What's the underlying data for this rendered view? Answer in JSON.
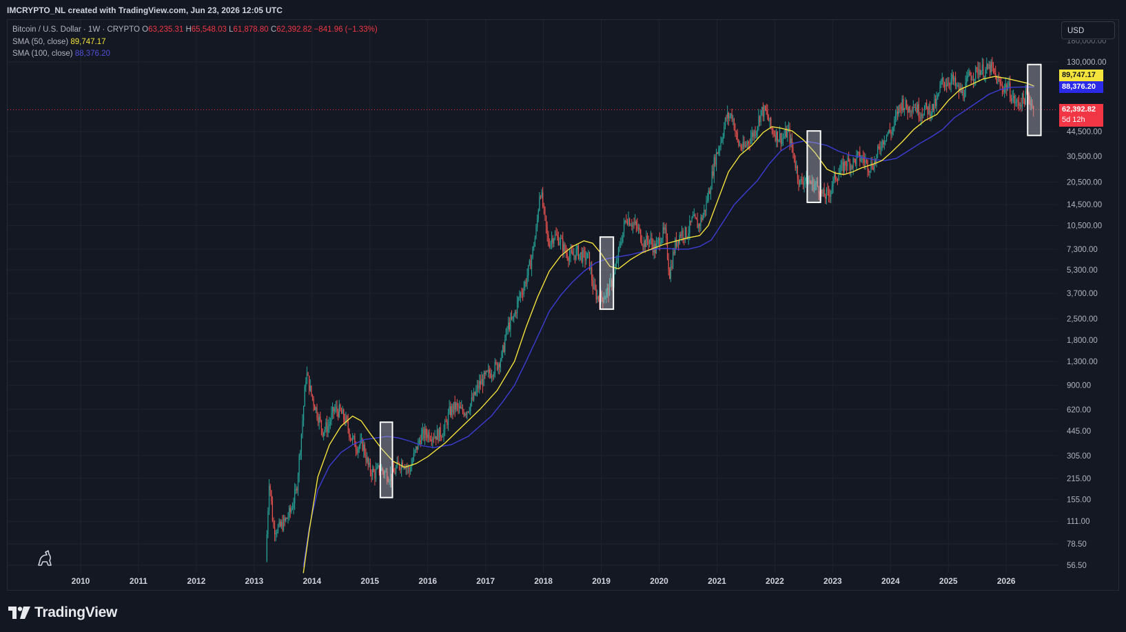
{
  "header": {
    "attribution": "IMCRYPTO_NL created with TradingView.com, Jun 23, 2026 12:05 UTC"
  },
  "legend": {
    "symbol": "Bitcoin / U.S. Dollar · 1W · CRYPTO",
    "open_label": "O",
    "open": "63,235.31",
    "high_label": "H",
    "high": "65,548.03",
    "low_label": "L",
    "low": "61,878.80",
    "close_label": "C",
    "close": "62,392.82",
    "change": "−841.96 (−1.33%)",
    "sma50_label": "SMA (50, close)",
    "sma50_value": "89,747.17",
    "sma100_label": "SMA (100, close)",
    "sma100_value": "88,376.20"
  },
  "currency_button": "USD",
  "price_badges": {
    "sma50": "89,747.17",
    "sma100": "88,376.20",
    "last": "62,392.82",
    "countdown": "5d 12h"
  },
  "colors": {
    "background": "#131722",
    "up": "#26a69a",
    "down": "#ef5350",
    "sma50": "#f5e43c",
    "sma100": "#3d3dd6",
    "last_price": "#f23645"
  },
  "brand": "TradingView",
  "chart_data": {
    "type": "candlestick",
    "symbol": "BTCUSD",
    "timeframe": "1W",
    "scale": "log",
    "y_ticks": [
      "56.50",
      "78.50",
      "111.00",
      "155.00",
      "215.00",
      "305.00",
      "445.00",
      "620.00",
      "900.00",
      "1,300.00",
      "1,800.00",
      "2,500.00",
      "3,700.00",
      "5,300.00",
      "7,300.00",
      "10,500.00",
      "14,500.00",
      "20,500.00",
      "30,500.00",
      "44,500.00",
      "130,000.00"
    ],
    "x_ticks": [
      "2010",
      "2011",
      "2012",
      "2013",
      "2014",
      "2015",
      "2016",
      "2017",
      "2018",
      "2019",
      "2020",
      "2021",
      "2022",
      "2023",
      "2024",
      "2025",
      "2026"
    ],
    "price_path": [
      [
        2013.22,
        60
      ],
      [
        2013.28,
        220
      ],
      [
        2013.35,
        100
      ],
      [
        2013.45,
        100
      ],
      [
        2013.55,
        110
      ],
      [
        2013.65,
        130
      ],
      [
        2013.75,
        180
      ],
      [
        2013.85,
        500
      ],
      [
        2013.92,
        1100
      ],
      [
        2014.0,
        800
      ],
      [
        2014.1,
        600
      ],
      [
        2014.2,
        450
      ],
      [
        2014.3,
        480
      ],
      [
        2014.4,
        620
      ],
      [
        2014.5,
        600
      ],
      [
        2014.6,
        520
      ],
      [
        2014.7,
        400
      ],
      [
        2014.8,
        350
      ],
      [
        2014.9,
        360
      ],
      [
        2015.0,
        250
      ],
      [
        2015.1,
        230
      ],
      [
        2015.2,
        250
      ],
      [
        2015.3,
        230
      ],
      [
        2015.4,
        220
      ],
      [
        2015.5,
        260
      ],
      [
        2015.6,
        280
      ],
      [
        2015.7,
        240
      ],
      [
        2015.8,
        320
      ],
      [
        2015.9,
        410
      ],
      [
        2016.0,
        430
      ],
      [
        2016.1,
        420
      ],
      [
        2016.2,
        420
      ],
      [
        2016.3,
        450
      ],
      [
        2016.4,
        600
      ],
      [
        2016.5,
        650
      ],
      [
        2016.6,
        600
      ],
      [
        2016.7,
        620
      ],
      [
        2016.8,
        720
      ],
      [
        2016.9,
        900
      ],
      [
        2017.0,
        1000
      ],
      [
        2017.1,
        1100
      ],
      [
        2017.2,
        1200
      ],
      [
        2017.3,
        1400
      ],
      [
        2017.4,
        2200
      ],
      [
        2017.5,
        2500
      ],
      [
        2017.6,
        3500
      ],
      [
        2017.7,
        4300
      ],
      [
        2017.8,
        6000
      ],
      [
        2017.9,
        10000
      ],
      [
        2017.96,
        19000
      ],
      [
        2018.05,
        11000
      ],
      [
        2018.1,
        8000
      ],
      [
        2018.2,
        9000
      ],
      [
        2018.3,
        8500
      ],
      [
        2018.4,
        7000
      ],
      [
        2018.5,
        6500
      ],
      [
        2018.6,
        7000
      ],
      [
        2018.7,
        6500
      ],
      [
        2018.8,
        6400
      ],
      [
        2018.88,
        4000
      ],
      [
        2018.95,
        3500
      ],
      [
        2019.05,
        3500
      ],
      [
        2019.15,
        3900
      ],
      [
        2019.25,
        5000
      ],
      [
        2019.35,
        8000
      ],
      [
        2019.45,
        12000
      ],
      [
        2019.55,
        11000
      ],
      [
        2019.65,
        10000
      ],
      [
        2019.75,
        8000
      ],
      [
        2019.85,
        8500
      ],
      [
        2019.95,
        7200
      ],
      [
        2020.05,
        9000
      ],
      [
        2020.12,
        9500
      ],
      [
        2020.2,
        5000
      ],
      [
        2020.3,
        8000
      ],
      [
        2020.4,
        9500
      ],
      [
        2020.5,
        9200
      ],
      [
        2020.6,
        11500
      ],
      [
        2020.7,
        10500
      ],
      [
        2020.8,
        13000
      ],
      [
        2020.9,
        19000
      ],
      [
        2020.98,
        29000
      ],
      [
        2021.08,
        38000
      ],
      [
        2021.18,
        55000
      ],
      [
        2021.28,
        58000
      ],
      [
        2021.38,
        37000
      ],
      [
        2021.48,
        34000
      ],
      [
        2021.58,
        40000
      ],
      [
        2021.68,
        45000
      ],
      [
        2021.78,
        61000
      ],
      [
        2021.87,
        60000
      ],
      [
        2021.95,
        47000
      ],
      [
        2022.05,
        42000
      ],
      [
        2022.15,
        40000
      ],
      [
        2022.25,
        45000
      ],
      [
        2022.35,
        30000
      ],
      [
        2022.45,
        20000
      ],
      [
        2022.55,
        22000
      ],
      [
        2022.65,
        20000
      ],
      [
        2022.75,
        19500
      ],
      [
        2022.85,
        16500
      ],
      [
        2022.95,
        16800
      ],
      [
        2023.05,
        22000
      ],
      [
        2023.15,
        24000
      ],
      [
        2023.25,
        28000
      ],
      [
        2023.35,
        27000
      ],
      [
        2023.45,
        30000
      ],
      [
        2023.55,
        29000
      ],
      [
        2023.65,
        26000
      ],
      [
        2023.75,
        28000
      ],
      [
        2023.85,
        37000
      ],
      [
        2023.95,
        43000
      ],
      [
        2024.05,
        45000
      ],
      [
        2024.15,
        62000
      ],
      [
        2024.22,
        70000
      ],
      [
        2024.32,
        63000
      ],
      [
        2024.42,
        68000
      ],
      [
        2024.52,
        60000
      ],
      [
        2024.62,
        63000
      ],
      [
        2024.72,
        62000
      ],
      [
        2024.82,
        70000
      ],
      [
        2024.9,
        95000
      ],
      [
        2024.98,
        95000
      ],
      [
        2025.08,
        100000
      ],
      [
        2025.18,
        85000
      ],
      [
        2025.28,
        80000
      ],
      [
        2025.38,
        105000
      ],
      [
        2025.48,
        108000
      ],
      [
        2025.55,
        118000
      ],
      [
        2025.65,
        112000
      ],
      [
        2025.75,
        120000
      ],
      [
        2025.8,
        110000
      ],
      [
        2025.88,
        95000
      ],
      [
        2025.95,
        88000
      ],
      [
        2026.05,
        90000
      ],
      [
        2026.12,
        75000
      ],
      [
        2026.2,
        68000
      ],
      [
        2026.3,
        72000
      ],
      [
        2026.38,
        78000
      ],
      [
        2026.45,
        70000
      ],
      [
        2026.48,
        62392.82
      ]
    ],
    "sma50_path": [
      [
        2013.85,
        50
      ],
      [
        2013.95,
        95
      ],
      [
        2014.1,
        220
      ],
      [
        2014.3,
        360
      ],
      [
        2014.5,
        480
      ],
      [
        2014.7,
        560
      ],
      [
        2014.85,
        520
      ],
      [
        2015.0,
        430
      ],
      [
        2015.2,
        340
      ],
      [
        2015.4,
        280
      ],
      [
        2015.6,
        255
      ],
      [
        2015.8,
        270
      ],
      [
        2016.0,
        300
      ],
      [
        2016.3,
        370
      ],
      [
        2016.6,
        480
      ],
      [
        2016.9,
        620
      ],
      [
        2017.2,
        830
      ],
      [
        2017.5,
        1300
      ],
      [
        2017.7,
        2200
      ],
      [
        2017.9,
        3500
      ],
      [
        2018.1,
        5200
      ],
      [
        2018.3,
        6600
      ],
      [
        2018.5,
        7600
      ],
      [
        2018.7,
        8300
      ],
      [
        2018.85,
        8000
      ],
      [
        2019.0,
        6800
      ],
      [
        2019.15,
        5600
      ],
      [
        2019.3,
        5400
      ],
      [
        2019.5,
        6200
      ],
      [
        2019.7,
        6900
      ],
      [
        2019.9,
        7400
      ],
      [
        2020.1,
        7900
      ],
      [
        2020.3,
        8300
      ],
      [
        2020.5,
        8700
      ],
      [
        2020.7,
        9000
      ],
      [
        2020.85,
        10500
      ],
      [
        2021.0,
        15000
      ],
      [
        2021.2,
        24000
      ],
      [
        2021.4,
        31000
      ],
      [
        2021.6,
        36000
      ],
      [
        2021.8,
        44000
      ],
      [
        2021.95,
        48000
      ],
      [
        2022.1,
        47000
      ],
      [
        2022.3,
        45000
      ],
      [
        2022.5,
        39000
      ],
      [
        2022.7,
        32000
      ],
      [
        2022.9,
        25000
      ],
      [
        2023.05,
        23500
      ],
      [
        2023.2,
        23000
      ],
      [
        2023.35,
        24000
      ],
      [
        2023.5,
        25500
      ],
      [
        2023.7,
        27000
      ],
      [
        2023.85,
        28500
      ],
      [
        2024.0,
        32000
      ],
      [
        2024.2,
        38000
      ],
      [
        2024.4,
        46000
      ],
      [
        2024.6,
        53000
      ],
      [
        2024.8,
        58000
      ],
      [
        2025.0,
        72000
      ],
      [
        2025.2,
        85000
      ],
      [
        2025.4,
        92000
      ],
      [
        2025.6,
        100000
      ],
      [
        2025.8,
        104000
      ],
      [
        2026.0,
        101000
      ],
      [
        2026.2,
        97000
      ],
      [
        2026.35,
        94000
      ],
      [
        2026.48,
        89747.17
      ]
    ],
    "sma100_path": [
      [
        2013.85,
        55
      ],
      [
        2013.95,
        100
      ],
      [
        2014.1,
        180
      ],
      [
        2014.3,
        260
      ],
      [
        2014.5,
        320
      ],
      [
        2014.7,
        360
      ],
      [
        2014.9,
        390
      ],
      [
        2015.1,
        400
      ],
      [
        2015.3,
        410
      ],
      [
        2015.5,
        400
      ],
      [
        2015.7,
        380
      ],
      [
        2015.9,
        355
      ],
      [
        2016.1,
        345
      ],
      [
        2016.4,
        360
      ],
      [
        2016.7,
        410
      ],
      [
        2016.9,
        480
      ],
      [
        2017.1,
        560
      ],
      [
        2017.3,
        700
      ],
      [
        2017.5,
        900
      ],
      [
        2017.7,
        1300
      ],
      [
        2017.9,
        1900
      ],
      [
        2018.1,
        2800
      ],
      [
        2018.3,
        3600
      ],
      [
        2018.5,
        4400
      ],
      [
        2018.7,
        5200
      ],
      [
        2018.9,
        5900
      ],
      [
        2019.1,
        6300
      ],
      [
        2019.3,
        6500
      ],
      [
        2019.5,
        6700
      ],
      [
        2019.7,
        7000
      ],
      [
        2019.9,
        7300
      ],
      [
        2020.1,
        7400
      ],
      [
        2020.3,
        7300
      ],
      [
        2020.5,
        7300
      ],
      [
        2020.7,
        7600
      ],
      [
        2020.9,
        8400
      ],
      [
        2021.1,
        11000
      ],
      [
        2021.3,
        14500
      ],
      [
        2021.5,
        17500
      ],
      [
        2021.7,
        21000
      ],
      [
        2021.9,
        27000
      ],
      [
        2022.1,
        33000
      ],
      [
        2022.3,
        37000
      ],
      [
        2022.5,
        38500
      ],
      [
        2022.7,
        37500
      ],
      [
        2022.9,
        36000
      ],
      [
        2023.1,
        33000
      ],
      [
        2023.3,
        31000
      ],
      [
        2023.5,
        30000
      ],
      [
        2023.7,
        29000
      ],
      [
        2023.9,
        28500
      ],
      [
        2024.1,
        29500
      ],
      [
        2024.3,
        33000
      ],
      [
        2024.5,
        37000
      ],
      [
        2024.7,
        41000
      ],
      [
        2024.9,
        46000
      ],
      [
        2025.1,
        55000
      ],
      [
        2025.3,
        62000
      ],
      [
        2025.5,
        70000
      ],
      [
        2025.7,
        79000
      ],
      [
        2025.9,
        85000
      ],
      [
        2026.1,
        88000
      ],
      [
        2026.3,
        88500
      ],
      [
        2026.48,
        88376.2
      ]
    ],
    "highlight_boxes": [
      {
        "x0": 2015.18,
        "x1": 2015.39,
        "y_low": 160,
        "y_high": 510
      },
      {
        "x0": 2018.98,
        "x1": 2019.21,
        "y_low": 2900,
        "y_high": 8800
      },
      {
        "x0": 2022.56,
        "x1": 2022.79,
        "y_low": 15000,
        "y_high": 45000
      },
      {
        "x0": 2026.37,
        "x1": 2026.6,
        "y_low": 42000,
        "y_high": 125000
      }
    ]
  }
}
